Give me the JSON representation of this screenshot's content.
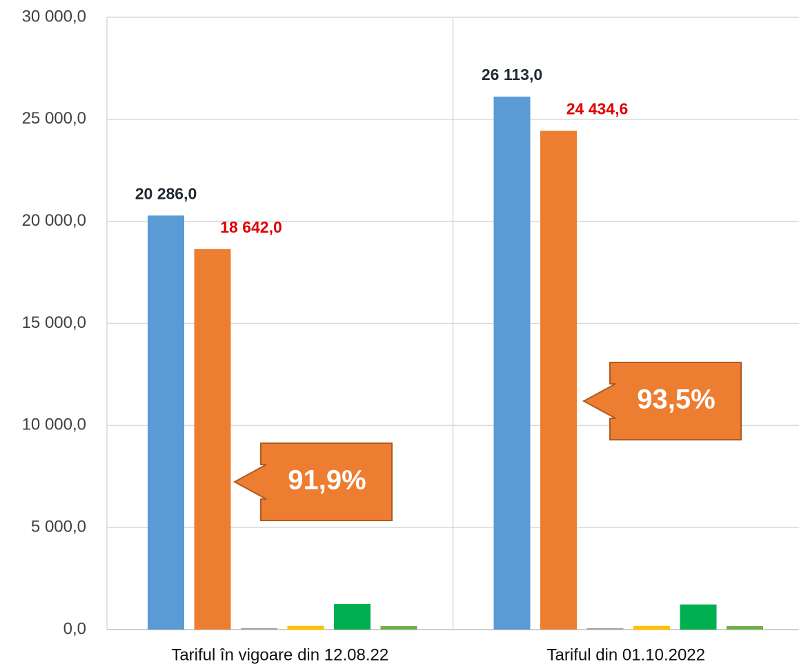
{
  "chart_data": {
    "type": "bar",
    "categories": [
      "Tariful în vigoare din 12.08.22",
      "Tariful din 01.10.2022"
    ],
    "series": [
      {
        "color": "#5b9bd5",
        "label_color": "#222a35",
        "values": [
          20286,
          26113
        ],
        "value_labels": [
          "20 286,0",
          "26 113,0"
        ]
      },
      {
        "color": "#ed7d31",
        "label_color": "#e00000",
        "values": [
          18642,
          24434.6
        ],
        "value_labels": [
          "18 642,0",
          "24 434,6"
        ]
      },
      {
        "color": "#a5a5a5",
        "values": [
          70,
          70
        ]
      },
      {
        "color": "#ffc000",
        "values": [
          180,
          180
        ]
      },
      {
        "color": "#00b050",
        "values": [
          1250,
          1230
        ]
      },
      {
        "color": "#70ad47",
        "values": [
          170,
          170
        ]
      }
    ],
    "annotations": [
      {
        "text": "91,9%",
        "color": "#ed7d31"
      },
      {
        "text": "93,5%",
        "color": "#ed7d31"
      }
    ],
    "ylim": [
      0,
      30000
    ],
    "yticks": [
      {
        "value": 0,
        "label": "0,0"
      },
      {
        "value": 5000,
        "label": "5 000,0"
      },
      {
        "value": 10000,
        "label": "10 000,0"
      },
      {
        "value": 15000,
        "label": "15 000,0"
      },
      {
        "value": 20000,
        "label": "20 000,0"
      },
      {
        "value": 25000,
        "label": "25 000,0"
      },
      {
        "value": 30000,
        "label": "30 000,0"
      }
    ],
    "grid": true
  }
}
